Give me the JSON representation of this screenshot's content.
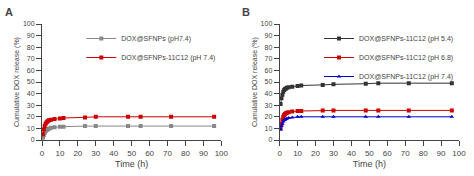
{
  "chart_data": [
    {
      "type": "line",
      "title": "A",
      "x": [
        0.5,
        1,
        1.5,
        2,
        2.5,
        3,
        3.5,
        4,
        5,
        7,
        10,
        12,
        24,
        30,
        48,
        55,
        72,
        96
      ],
      "series": [
        {
          "name": "DOX@SFNPs (pH7.4)",
          "color": "#888888",
          "marker": "square",
          "values": [
            2,
            4,
            6,
            7.5,
            8.5,
            9,
            9.5,
            10,
            10.5,
            11,
            11.5,
            11.5,
            12,
            12,
            12,
            12,
            12,
            12
          ]
        },
        {
          "name": "DOX@SFNPs-11C12 (pH 7.4)",
          "color": "#cc0000",
          "marker": "square",
          "values": [
            5,
            9,
            12,
            14,
            15,
            16,
            16.5,
            17,
            17.5,
            18,
            18.5,
            19,
            19.5,
            20,
            20,
            20,
            20,
            20
          ]
        }
      ],
      "xlabel": "Time (h)",
      "ylabel": "Cumulative DOX release (%)",
      "xlim": [
        0,
        100
      ],
      "ylim": [
        0,
        100
      ],
      "xticks": [
        0,
        10,
        20,
        30,
        40,
        50,
        60,
        70,
        80,
        90,
        100
      ],
      "yticks": [
        0,
        10,
        20,
        30,
        40,
        50,
        60,
        70,
        80,
        90,
        100
      ],
      "grid": false,
      "legend": "upper right"
    },
    {
      "type": "line",
      "title": "B",
      "x": [
        0.5,
        1,
        1.5,
        2,
        2.5,
        3,
        3.5,
        4,
        5,
        7,
        10,
        12,
        24,
        30,
        48,
        55,
        72,
        96
      ],
      "series": [
        {
          "name": "DOX@SFNPs-11C12 (pH 5.4)",
          "color": "#333333",
          "marker": "square",
          "values": [
            31,
            36,
            39,
            41.5,
            43,
            44,
            44.5,
            45,
            45.5,
            46,
            46.5,
            47,
            47.5,
            48,
            48.5,
            49,
            49,
            49
          ]
        },
        {
          "name": "DOX@SFNPs-11C12 (pH 6.8)",
          "color": "#cc0000",
          "marker": "square",
          "values": [
            10,
            14,
            17.5,
            20,
            21.5,
            22.5,
            23,
            23.5,
            24,
            24.5,
            25,
            25,
            25.5,
            25.5,
            25.5,
            25.5,
            25.5,
            25.5
          ]
        },
        {
          "name": "DOX@SFNPs-11C12 (pH 7.4)",
          "color": "#0000cc",
          "marker": "triangle-up",
          "values": [
            9,
            12,
            14,
            16,
            17,
            17.5,
            18,
            18.5,
            19,
            19.5,
            20,
            20,
            20,
            20,
            20,
            20,
            20,
            20
          ]
        }
      ],
      "xlabel": "Time (h)",
      "ylabel": "Cumulative DOX release (%)",
      "xlim": [
        0,
        100
      ],
      "ylim": [
        0,
        100
      ],
      "xticks": [
        0,
        10,
        20,
        30,
        40,
        50,
        60,
        70,
        80,
        90,
        100
      ],
      "yticks": [
        0,
        10,
        20,
        30,
        40,
        50,
        60,
        70,
        80,
        90,
        100
      ],
      "grid": false,
      "legend": "upper right"
    }
  ]
}
